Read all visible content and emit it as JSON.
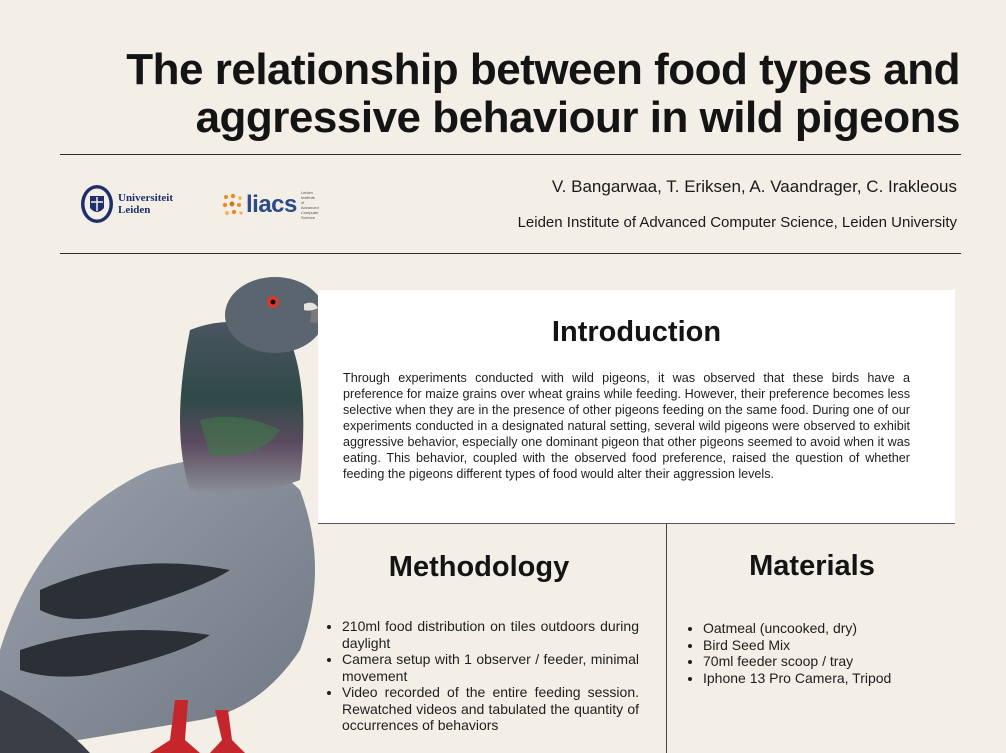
{
  "header": {
    "title": "The relationship between food types and aggressive behaviour in wild pigeons",
    "authors": "V. Bangarwaa, T. Eriksen, A. Vaandrager, C. Irakleous",
    "affiliation": "Leiden Institute of Advanced Computer Science, Leiden University"
  },
  "logos": {
    "leiden": {
      "line1": "Universiteit",
      "line2": "Leiden",
      "color": "#1f2f6b"
    },
    "liacs": {
      "word": "liacs",
      "subtitle": "Leiden Institute of Advanced Computer Science",
      "color": "#2b4a8a",
      "accent": "#e98a2a"
    }
  },
  "introduction": {
    "heading": "Introduction",
    "body": "Through experiments conducted with wild pigeons, it was observed that these birds have a preference for maize grains over wheat grains while feeding. However, their preference becomes less selective when they are in the presence of other pigeons feeding on the same food. During one of our experiments conducted in a designated natural setting, several wild pigeons were observed to exhibit aggressive behavior, especially one dominant pigeon that other pigeons seemed to avoid when it was eating. This behavior, coupled with the observed food preference, raised the question of whether feeding the pigeons different types of food would alter their aggression levels."
  },
  "methodology": {
    "heading": "Methodology",
    "items": [
      "210ml food distribution on tiles outdoors during daylight",
      "Camera setup with 1 observer / feeder, minimal movement",
      "Video recorded of the entire feeding session. Rewatched videos and tabulated the quantity of occurrences of behaviors"
    ]
  },
  "materials": {
    "heading": "Materials",
    "items": [
      "Oatmeal (uncooked, dry)",
      "Bird Seed Mix",
      "70ml feeder scoop / tray",
      "Iphone 13 Pro Camera, Tripod"
    ]
  },
  "colors": {
    "background": "#f3efe7",
    "panel": "#ffffff",
    "text": "#1a1a1a"
  }
}
